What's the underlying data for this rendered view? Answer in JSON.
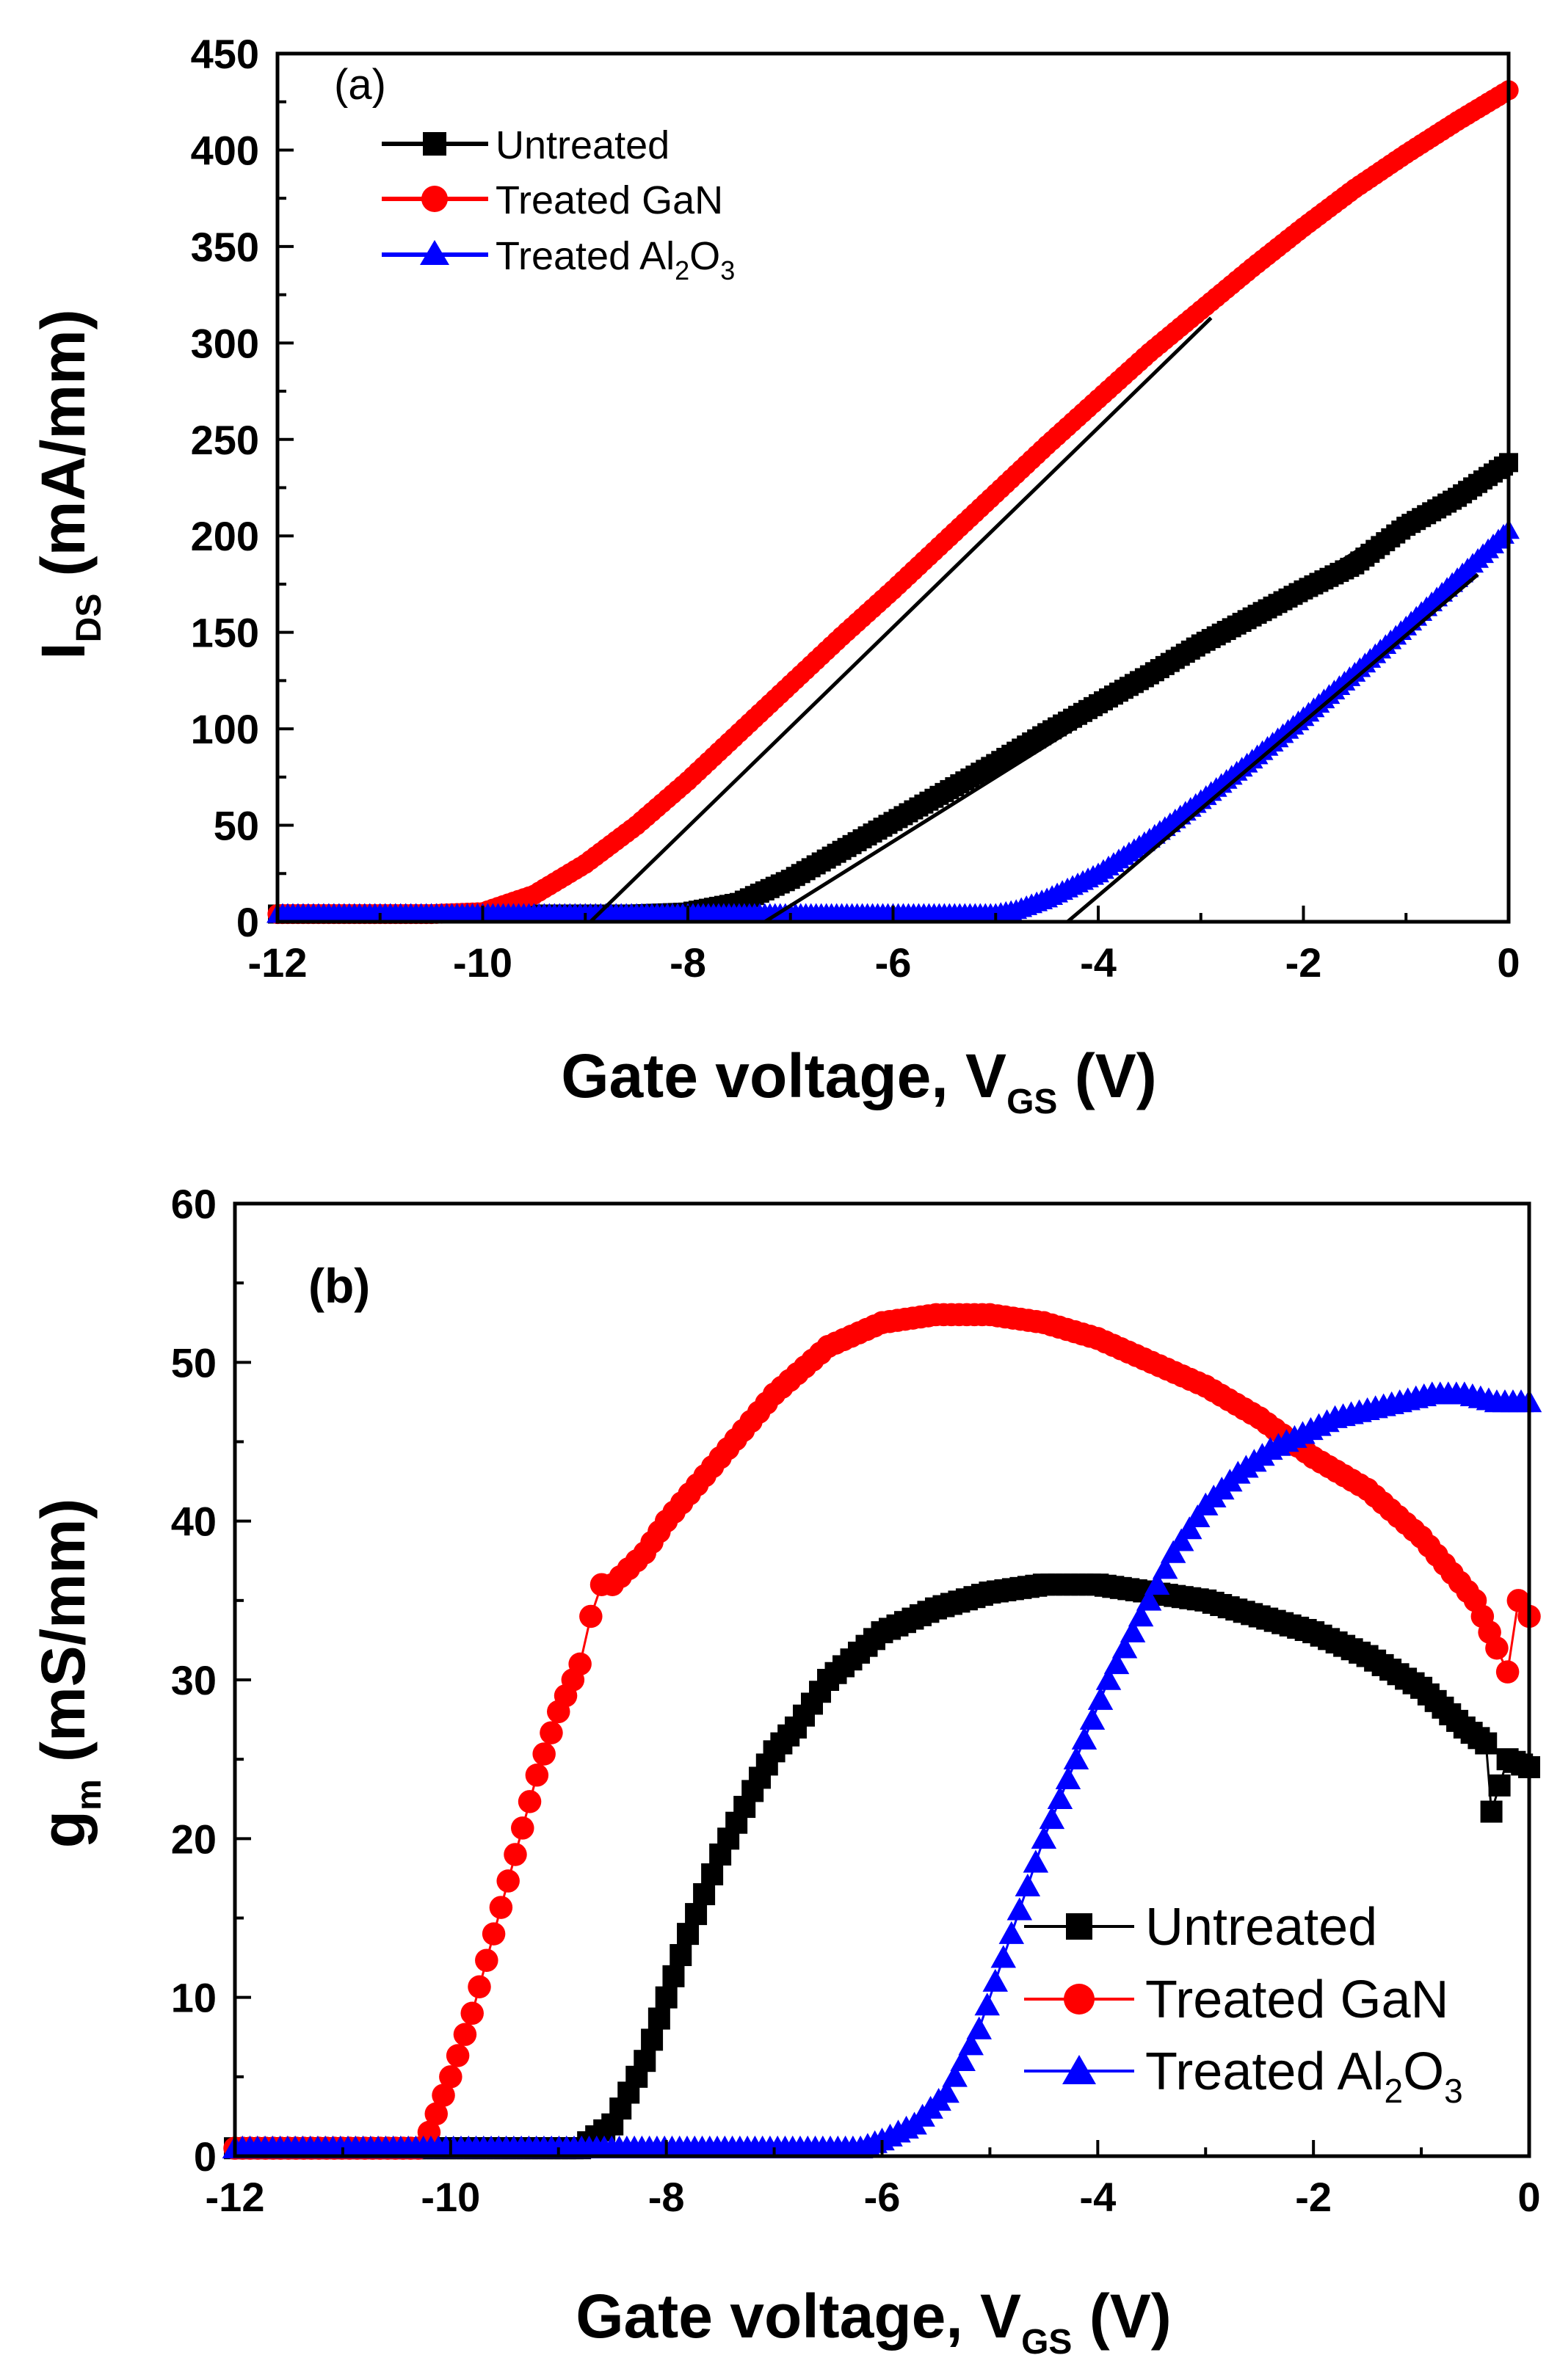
{
  "chart_data": [
    {
      "type": "line",
      "panel_label": "(a)",
      "xlabel": "Gate voltage, V",
      "xlabel_sub": "GS",
      "xlabel_suffix": " (V)",
      "ylabel": "I",
      "ylabel_sub": "DS",
      "ylabel_suffix": " (mA/mm)",
      "xlim": [
        -12,
        0
      ],
      "ylim": [
        0,
        450
      ],
      "xticks": [
        -12,
        -10,
        -8,
        -6,
        -4,
        -2,
        0
      ],
      "yticks": [
        0,
        50,
        100,
        150,
        200,
        250,
        300,
        350,
        400,
        450
      ],
      "legend_position": "top-left",
      "series": [
        {
          "name": "Untreated",
          "legend_main": "Untreated",
          "color": "#000000",
          "marker": "square",
          "x": [
            -12,
            -10,
            -8.5,
            -8.0,
            -7.5,
            -7.0,
            -6.5,
            -6.0,
            -5.5,
            -5.0,
            -4.5,
            -4.0,
            -3.5,
            -3.0,
            -2.5,
            -2.0,
            -1.5,
            -1.0,
            -0.5,
            0.0
          ],
          "y": [
            4,
            4,
            4,
            5,
            10,
            22,
            37,
            52,
            67,
            82,
            98,
            113,
            128,
            144,
            158,
            172,
            185,
            205,
            220,
            238
          ]
        },
        {
          "name": "Treated GaN",
          "legend_main": "Treated GaN",
          "color": "#ff0000",
          "marker": "circle",
          "x": [
            -12,
            -10.5,
            -10.0,
            -9.5,
            -9.0,
            -8.5,
            -8.0,
            -7.5,
            -7.0,
            -6.5,
            -6.0,
            -5.5,
            -5.0,
            -4.5,
            -4.0,
            -3.5,
            -3.0,
            -2.5,
            -2.0,
            -1.5,
            -1.0,
            -0.5,
            0.0
          ],
          "y": [
            4,
            4,
            5,
            14,
            30,
            50,
            73,
            98,
            123,
            148,
            172,
            197,
            222,
            247,
            271,
            295,
            317,
            339,
            360,
            380,
            398,
            415,
            431
          ]
        },
        {
          "name": "Treated Al2O3",
          "legend_main": "Treated Al",
          "legend_sub1": "2",
          "legend_mid": "O",
          "legend_sub2": "3",
          "color": "#0000ff",
          "marker": "triangle",
          "x": [
            -12,
            -6,
            -5.0,
            -4.8,
            -4.5,
            -4.0,
            -3.5,
            -3.0,
            -2.5,
            -2.0,
            -1.5,
            -1.0,
            -0.5,
            0.0
          ],
          "y": [
            4,
            4,
            4,
            6,
            12,
            25,
            43,
            63,
            84,
            106,
            129,
            153,
            178,
            203
          ]
        }
      ],
      "fit_lines": [
        {
          "x": [
            -8.95,
            -2.9
          ],
          "y": [
            0,
            313
          ]
        },
        {
          "x": [
            -7.25,
            -0.1
          ],
          "y": [
            0,
            238
          ]
        },
        {
          "x": [
            -4.3,
            -0.3
          ],
          "y": [
            0,
            180
          ]
        }
      ]
    },
    {
      "type": "line",
      "panel_label": "(b)",
      "xlabel": "Gate voltage, V",
      "xlabel_sub": "GS",
      "xlabel_suffix": " (V)",
      "ylabel": "g",
      "ylabel_sub": "m",
      "ylabel_suffix": " (mS/mm)",
      "xlim": [
        -12,
        0
      ],
      "ylim": [
        0,
        60
      ],
      "xticks": [
        -12,
        -10,
        -8,
        -6,
        -4,
        -2,
        0
      ],
      "yticks": [
        0,
        10,
        20,
        30,
        40,
        50,
        60
      ],
      "legend_position": "bottom-right",
      "series": [
        {
          "name": "Untreated",
          "legend_main": "Untreated",
          "color": "#000000",
          "marker": "square",
          "x": [
            -12,
            -8.8,
            -8.5,
            -8.2,
            -8.0,
            -7.8,
            -7.5,
            -7.2,
            -7.0,
            -6.8,
            -6.5,
            -6.0,
            -5.5,
            -5.0,
            -4.5,
            -4.0,
            -3.5,
            -3.0,
            -2.5,
            -2.0,
            -1.5,
            -1.0,
            -0.6,
            -0.4,
            -0.35,
            -0.2,
            0.0
          ],
          "y": [
            0.5,
            0.5,
            2,
            6,
            10,
            14,
            19,
            23,
            25.5,
            27,
            30,
            33,
            34.5,
            35.5,
            36,
            36,
            35.5,
            35,
            34,
            33,
            31.5,
            29.5,
            27,
            26,
            21.7,
            25,
            24.5
          ]
        },
        {
          "name": "Treated GaN",
          "legend_main": "Treated GaN",
          "color": "#ff0000",
          "marker": "circle",
          "x": [
            -12,
            -10.3,
            -10.2,
            -10.0,
            -9.8,
            -9.6,
            -9.4,
            -9.2,
            -9.0,
            -8.8,
            -8.7,
            -8.6,
            -8.5,
            -8.2,
            -8.0,
            -7.5,
            -7.0,
            -6.5,
            -6.0,
            -5.5,
            -5.0,
            -4.5,
            -4.0,
            -3.5,
            -3.0,
            -2.5,
            -2.0,
            -1.5,
            -1.0,
            -0.5,
            -0.3,
            -0.2,
            -0.1,
            0.0
          ],
          "y": [
            0.5,
            0.5,
            1.5,
            5,
            9,
            14,
            19,
            24,
            28,
            31,
            34,
            36,
            36,
            38,
            40,
            44,
            48,
            51,
            52.5,
            53,
            53,
            52.5,
            51.5,
            50,
            48.5,
            46.5,
            44,
            42,
            39,
            35,
            32,
            30.5,
            35,
            34
          ]
        },
        {
          "name": "Treated Al2O3",
          "legend_main": "Treated Al",
          "legend_sub1": "2",
          "legend_mid": "O",
          "legend_sub2": "3",
          "color": "#0000ff",
          "marker": "triangle",
          "x": [
            -12,
            -6.2,
            -6.0,
            -5.7,
            -5.4,
            -5.1,
            -4.8,
            -4.5,
            -4.2,
            -3.9,
            -3.6,
            -3.3,
            -3.0,
            -2.7,
            -2.4,
            -2.1,
            -1.8,
            -1.5,
            -1.2,
            -0.9,
            -0.6,
            -0.3,
            0.0
          ],
          "y": [
            0.5,
            0.5,
            1,
            2,
            4,
            8,
            14,
            20,
            25,
            30,
            34,
            38,
            41,
            43,
            44.5,
            45.5,
            46.5,
            47,
            47.5,
            48,
            48,
            47.5,
            47.5
          ]
        }
      ]
    }
  ]
}
